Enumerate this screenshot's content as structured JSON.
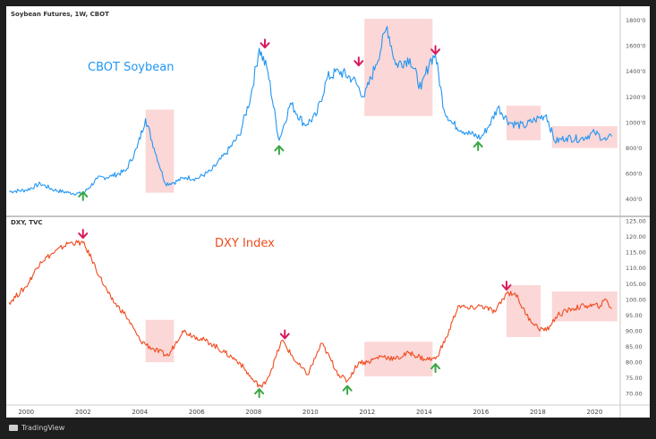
{
  "chart_data": [
    {
      "type": "line",
      "title": "Soybean Futures, 1W, CBOT",
      "label": "CBOT Soybean",
      "color": "#2196f3",
      "ylim": [
        3000,
        18800
      ],
      "yticks": [
        4000,
        6000,
        8000,
        10000,
        12000,
        14000,
        16000,
        18000
      ],
      "ytick_labels": [
        "400'0",
        "600'0",
        "800'0",
        "1000'0",
        "1200'0",
        "1400'0",
        "1600'0",
        "1800'0"
      ],
      "x": [
        1999.4,
        2000.0,
        2000.5,
        2001.0,
        2001.5,
        2002.0,
        2002.5,
        2003.0,
        2003.5,
        2003.9,
        2004.2,
        2004.5,
        2004.9,
        2005.2,
        2005.6,
        2006.0,
        2006.5,
        2007.0,
        2007.5,
        2007.9,
        2008.2,
        2008.5,
        2008.9,
        2009.3,
        2009.8,
        2010.2,
        2010.6,
        2011.0,
        2011.5,
        2011.9,
        2012.3,
        2012.7,
        2013.0,
        2013.5,
        2013.9,
        2014.2,
        2014.4,
        2014.7,
        2015.0,
        2015.5,
        2016.0,
        2016.3,
        2016.6,
        2017.0,
        2017.5,
        2017.9,
        2018.3,
        2018.6,
        2019.0,
        2019.5,
        2020.0,
        2020.4,
        2020.6
      ],
      "y": [
        4600,
        4700,
        5200,
        4700,
        4500,
        4400,
        5600,
        5800,
        6200,
        8000,
        10300,
        8000,
        5200,
        5300,
        5700,
        5600,
        6200,
        7500,
        9000,
        12000,
        15800,
        14000,
        8600,
        11500,
        9800,
        10500,
        13500,
        14000,
        13400,
        12000,
        14500,
        17500,
        14500,
        15000,
        12600,
        14800,
        15300,
        11000,
        9900,
        9200,
        8800,
        9800,
        11200,
        10000,
        9700,
        10200,
        10600,
        8500,
        8800,
        8700,
        9200,
        8600,
        8900
      ],
      "annotations": [
        {
          "type": "down-arrow",
          "x": 2008.4,
          "y": 16200
        },
        {
          "type": "up-arrow",
          "x": 2008.9,
          "y": 7800
        },
        {
          "type": "down-arrow",
          "x": 2011.7,
          "y": 14800
        },
        {
          "type": "down-arrow",
          "x": 2014.4,
          "y": 15700
        },
        {
          "type": "up-arrow",
          "x": 2002.0,
          "y": 4200
        },
        {
          "type": "up-arrow",
          "x": 2015.9,
          "y": 8100
        }
      ],
      "highlight_ranges": [
        {
          "x": [
            2004.2,
            2005.2
          ],
          "y": [
            4500,
            11000
          ]
        },
        {
          "x": [
            2011.9,
            2014.3
          ],
          "y": [
            10500,
            18100
          ]
        },
        {
          "x": [
            2016.9,
            2018.1
          ],
          "y": [
            8600,
            11300
          ]
        },
        {
          "x": [
            2018.5,
            2020.8
          ],
          "y": [
            8000,
            9700
          ]
        }
      ]
    },
    {
      "type": "line",
      "title": "DXY, TVC",
      "label": "DXY Index",
      "color": "#f04a1d",
      "ylim": [
        67.5,
        125
      ],
      "yticks": [
        70,
        75,
        80,
        85,
        90,
        95,
        100,
        105,
        110,
        115,
        120,
        125
      ],
      "ytick_labels": [
        "70.00",
        "75.00",
        "80.00",
        "85.00",
        "90.00",
        "95.00",
        "100.00",
        "105.00",
        "110.00",
        "115.00",
        "120.00",
        "125.00"
      ],
      "x": [
        1999.4,
        2000.0,
        2000.5,
        2001.0,
        2001.5,
        2002.0,
        2002.3,
        2002.6,
        2003.0,
        2003.5,
        2004.0,
        2004.5,
        2005.0,
        2005.5,
        2006.0,
        2006.5,
        2007.0,
        2007.5,
        2008.0,
        2008.3,
        2008.6,
        2009.0,
        2009.5,
        2009.9,
        2010.4,
        2011.0,
        2011.3,
        2011.7,
        2012.0,
        2012.5,
        2013.0,
        2013.5,
        2014.0,
        2014.4,
        2014.8,
        2015.2,
        2015.6,
        2016.0,
        2016.5,
        2016.9,
        2017.2,
        2017.6,
        2018.0,
        2018.3,
        2018.7,
        2019.2,
        2019.7,
        2020.2,
        2020.4,
        2020.6
      ],
      "y": [
        99,
        104,
        112,
        115,
        118,
        118,
        113,
        107,
        100,
        95,
        87,
        84,
        82,
        90,
        88,
        86,
        83,
        80,
        74,
        72,
        77,
        87,
        80,
        76,
        86,
        76,
        74,
        80,
        80,
        82,
        81,
        83,
        81,
        81,
        88,
        98,
        97,
        98,
        96,
        102,
        102,
        95,
        91,
        90,
        95,
        97,
        98,
        98,
        100,
        97
      ],
      "annotations": [
        {
          "type": "down-arrow",
          "x": 2002.0,
          "y": 121
        },
        {
          "type": "down-arrow",
          "x": 2009.1,
          "y": 89
        },
        {
          "type": "down-arrow",
          "x": 2016.9,
          "y": 104.5
        },
        {
          "type": "up-arrow",
          "x": 2008.2,
          "y": 70
        },
        {
          "type": "up-arrow",
          "x": 2011.3,
          "y": 71
        },
        {
          "type": "up-arrow",
          "x": 2014.4,
          "y": 78
        }
      ],
      "highlight_ranges": [
        {
          "x": [
            2004.2,
            2005.2
          ],
          "y": [
            80,
            93.5
          ]
        },
        {
          "x": [
            2011.9,
            2014.3
          ],
          "y": [
            75.5,
            86.5
          ]
        },
        {
          "x": [
            2016.9,
            2018.1
          ],
          "y": [
            88,
            104.5
          ]
        },
        {
          "x": [
            2018.5,
            2020.8
          ],
          "y": [
            93,
            102.5
          ]
        }
      ]
    }
  ],
  "x_axis": {
    "xlim": [
      1999.3,
      2020.9
    ],
    "ticks": [
      2000,
      2002,
      2004,
      2006,
      2008,
      2010,
      2012,
      2014,
      2016,
      2018,
      2020
    ],
    "tick_labels": [
      "2000",
      "2002",
      "2004",
      "2006",
      "2008",
      "2010",
      "2012",
      "2014",
      "2016",
      "2018",
      "2020"
    ]
  },
  "colors": {
    "up_arrow": "#3aa845",
    "down_arrow": "#d81b60",
    "highlight": "#f7b6b6",
    "frame": "#1e1e1e"
  },
  "footer": {
    "brand": "TradingView"
  }
}
